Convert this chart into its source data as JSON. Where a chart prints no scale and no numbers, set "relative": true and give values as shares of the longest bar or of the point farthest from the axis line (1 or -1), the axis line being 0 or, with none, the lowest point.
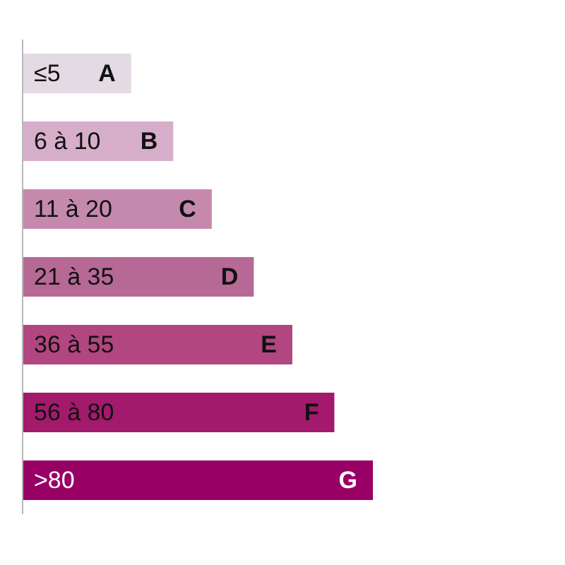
{
  "chart_data": {
    "type": "bar",
    "orientation": "horizontal",
    "relative": true,
    "categories": [
      "≤5",
      "6 à 10",
      "11 à 20",
      "21 à 35",
      "36 à 55",
      "56 à 80",
      ">80"
    ],
    "values": [
      0.31,
      0.43,
      0.54,
      0.66,
      0.77,
      0.89,
      1
    ],
    "colors": [
      "#e3dae4",
      "#d7aeca",
      "#c689ae",
      "#b76995",
      "#b24680",
      "#a31a6c",
      "#990066"
    ],
    "annotations": [
      "A",
      "B",
      "C",
      "D",
      "E",
      "F",
      "G"
    ]
  }
}
